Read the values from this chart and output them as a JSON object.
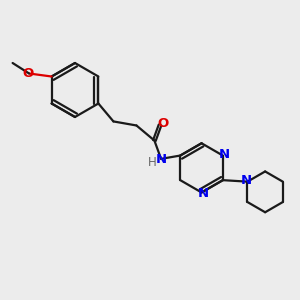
{
  "bg_color": "#ececec",
  "bond_color": "#1a1a1a",
  "N_color": "#0000ee",
  "O_color": "#dd0000",
  "line_width": 1.6,
  "font_size": 9.5,
  "fig_w": 3.0,
  "fig_h": 3.0,
  "dpi": 100,
  "xlim": [
    0,
    10
  ],
  "ylim": [
    0,
    10
  ]
}
